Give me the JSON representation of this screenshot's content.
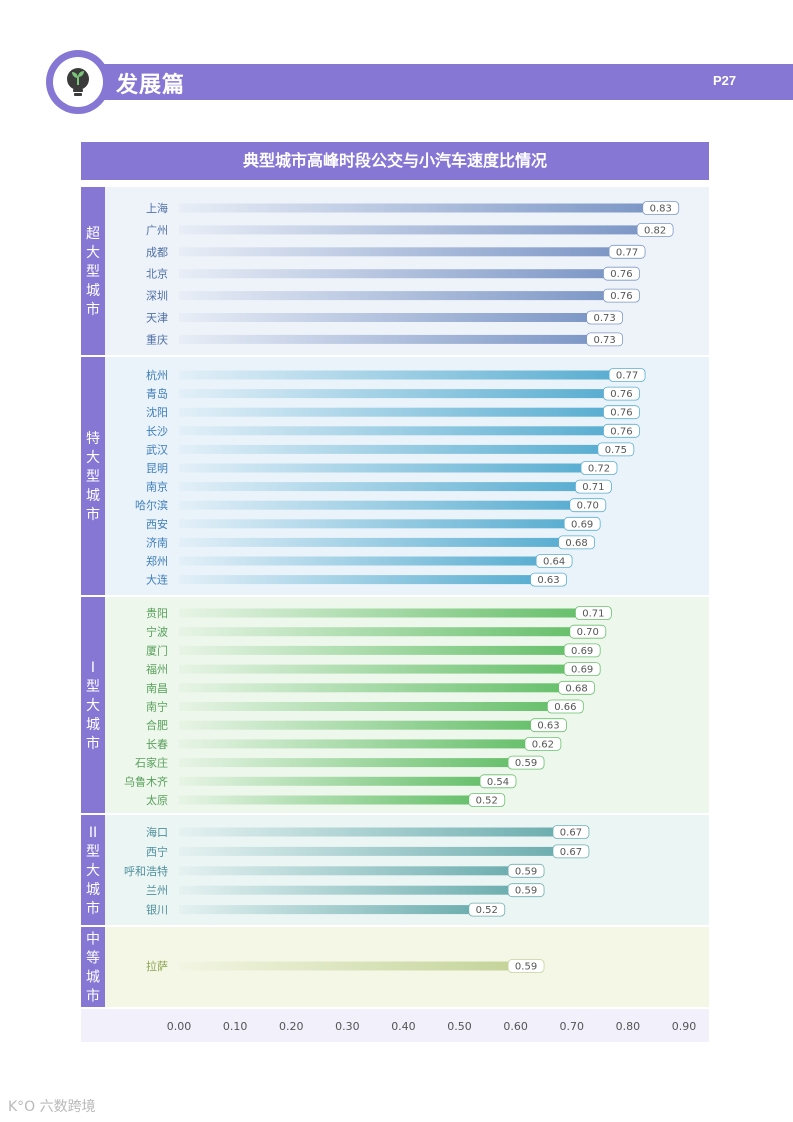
{
  "header": {
    "section_title": "发展篇",
    "page_number": "P27",
    "icon": "seedling-bulb-icon"
  },
  "footer": {
    "watermark": "K°O 六数跨境"
  },
  "colors": {
    "accent": "#8577d3",
    "group_bg": [
      "#eef2f9",
      "#eaf3fa",
      "#eef7ec",
      "#ebf5f4",
      "#f5f7e6"
    ],
    "bar_end": [
      "#7d97c6",
      "#5aaed1",
      "#68c06c",
      "#6eaeb0",
      "#c4d49a"
    ],
    "label_text": [
      "#4f70a6",
      "#3d7dbb",
      "#58a05c",
      "#4e8f9b",
      "#8aa454"
    ]
  },
  "chart_data": {
    "type": "bar",
    "orientation": "horizontal",
    "title": "典型城市高峰时段公交与小汽车速度比情况",
    "xlim": [
      0,
      0.9
    ],
    "xticks": [
      "0.00",
      "0.10",
      "0.20",
      "0.30",
      "0.40",
      "0.50",
      "0.60",
      "0.70",
      "0.80",
      "0.90"
    ],
    "groups": [
      {
        "name": "超大型城市",
        "cities": [
          "上海",
          "广州",
          "成都",
          "北京",
          "深圳",
          "天津",
          "重庆"
        ],
        "values": [
          0.83,
          0.82,
          0.77,
          0.76,
          0.76,
          0.73,
          0.73
        ]
      },
      {
        "name": "特大型城市",
        "cities": [
          "杭州",
          "青岛",
          "沈阳",
          "长沙",
          "武汉",
          "昆明",
          "南京",
          "哈尔滨",
          "西安",
          "济南",
          "郑州",
          "大连"
        ],
        "values": [
          0.77,
          0.76,
          0.76,
          0.76,
          0.75,
          0.72,
          0.71,
          0.7,
          0.69,
          0.68,
          0.64,
          0.63
        ]
      },
      {
        "name": "I型大城市",
        "cities": [
          "贵阳",
          "宁波",
          "厦门",
          "福州",
          "南昌",
          "南宁",
          "合肥",
          "长春",
          "石家庄",
          "乌鲁木齐",
          "太原"
        ],
        "values": [
          0.71,
          0.7,
          0.69,
          0.69,
          0.68,
          0.66,
          0.63,
          0.62,
          0.59,
          0.54,
          0.52
        ]
      },
      {
        "name": "II型大城市",
        "cities": [
          "海口",
          "西宁",
          "呼和浩特",
          "兰州",
          "银川"
        ],
        "values": [
          0.67,
          0.67,
          0.59,
          0.59,
          0.52
        ]
      },
      {
        "name": "中等城市",
        "cities": [
          "拉萨"
        ],
        "values": [
          0.59
        ]
      }
    ]
  }
}
